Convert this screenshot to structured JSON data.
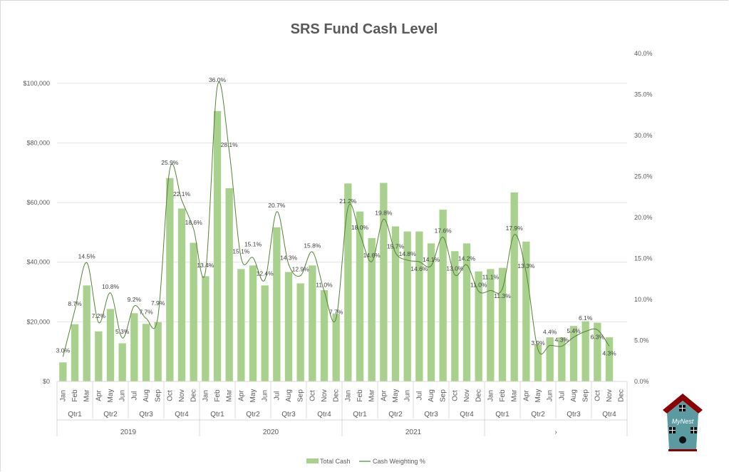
{
  "chart_data": {
    "type": "bar+line",
    "title": "SRS Fund Cash Level",
    "xlabel": "",
    "ylabel": "",
    "y_left": {
      "ylim": [
        0,
        110000
      ],
      "ticks": [
        0,
        20000,
        40000,
        60000,
        80000,
        100000
      ],
      "tick_labels": [
        "$0",
        "$20,000",
        "$40,000",
        "$60,000",
        "$80,000",
        "$100,000"
      ]
    },
    "y_right": {
      "ylim": [
        0,
        40
      ],
      "ticks": [
        0,
        5,
        10,
        15,
        20,
        25,
        30,
        35,
        40
      ],
      "tick_labels": [
        "0.0%",
        "5.0%",
        "10.0%",
        "15.0%",
        "20.0%",
        "25.0%",
        "30.0%",
        "35.0%",
        "40.0%"
      ]
    },
    "grid": true,
    "legend_position": "bottom",
    "x_groups": {
      "years": [
        "2019",
        "2020",
        "2021",
        "›"
      ],
      "quarters": [
        "Qtr1",
        "Qtr2",
        "Qtr3",
        "Qtr4"
      ],
      "months": [
        "Jan",
        "Feb",
        "Mar",
        "Apr",
        "May",
        "Jun",
        "Jul",
        "Aug",
        "Sep",
        "Oct",
        "Nov",
        "Dec"
      ]
    },
    "series": [
      {
        "name": "Total Cash",
        "type": "bar",
        "axis": "left",
        "color": "#a9d18e",
        "values": [
          6400,
          19200,
          32200,
          16800,
          24300,
          12800,
          22900,
          19300,
          19900,
          68200,
          58000,
          46500,
          35300,
          90700,
          64800,
          37700,
          38900,
          32200,
          51700,
          36700,
          32900,
          38900,
          30600,
          22600,
          66400,
          57000,
          48100,
          66600,
          52000,
          50300,
          50300,
          46300,
          57600,
          43700,
          46300,
          36900,
          37700,
          38100,
          63400,
          46900,
          12400,
          14800,
          14800,
          18600,
          20200,
          19700,
          14800,
          null
        ]
      },
      {
        "name": "Cash Weighting %",
        "type": "line",
        "axis": "right",
        "color": "#548235",
        "smooth": true,
        "values": [
          3.0,
          8.7,
          14.5,
          7.2,
          10.8,
          5.3,
          9.2,
          7.7,
          7.9,
          25.9,
          22.1,
          18.6,
          13.4,
          36.0,
          28.1,
          15.1,
          15.1,
          12.4,
          20.7,
          14.3,
          12.9,
          15.8,
          11.0,
          7.7,
          21.2,
          18.0,
          14.6,
          19.8,
          15.7,
          14.8,
          14.6,
          14.1,
          17.6,
          13.0,
          14.2,
          11.0,
          11.1,
          11.3,
          17.9,
          13.3,
          3.9,
          4.4,
          4.3,
          5.4,
          6.1,
          6.3,
          4.3,
          null
        ],
        "labels": [
          "3.0%",
          "8.7%",
          "14.5%",
          "7.2%",
          "10.8%",
          "5.3%",
          "9.2%",
          "7.7%",
          "7.9%",
          "25.9%",
          "22.1%",
          "18.6%",
          "13.4%",
          "36.0%",
          "28.1%",
          "15.1%",
          "15.1%",
          "12.4%",
          "20.7%",
          "14.3%",
          "12.9%",
          "15.8%",
          "11.0%",
          "7.7%",
          "21.2%",
          "18.0%",
          "14.6%",
          "19.8%",
          "15.7%",
          "14.8%",
          "14.6%",
          "14.1%",
          "17.6%",
          "13.0%",
          "14.2%",
          "11.0%",
          "11.1%",
          "11.3%",
          "17.9%",
          "13.3%",
          "3.9%",
          "4.4%",
          "4.3%",
          "5.4%",
          "6.1%",
          "6.3%",
          "4.3%",
          ""
        ]
      }
    ]
  },
  "logo": {
    "text": "MyNest",
    "wall_color": "#5b9aa0",
    "roof_color": "#8b0000"
  }
}
